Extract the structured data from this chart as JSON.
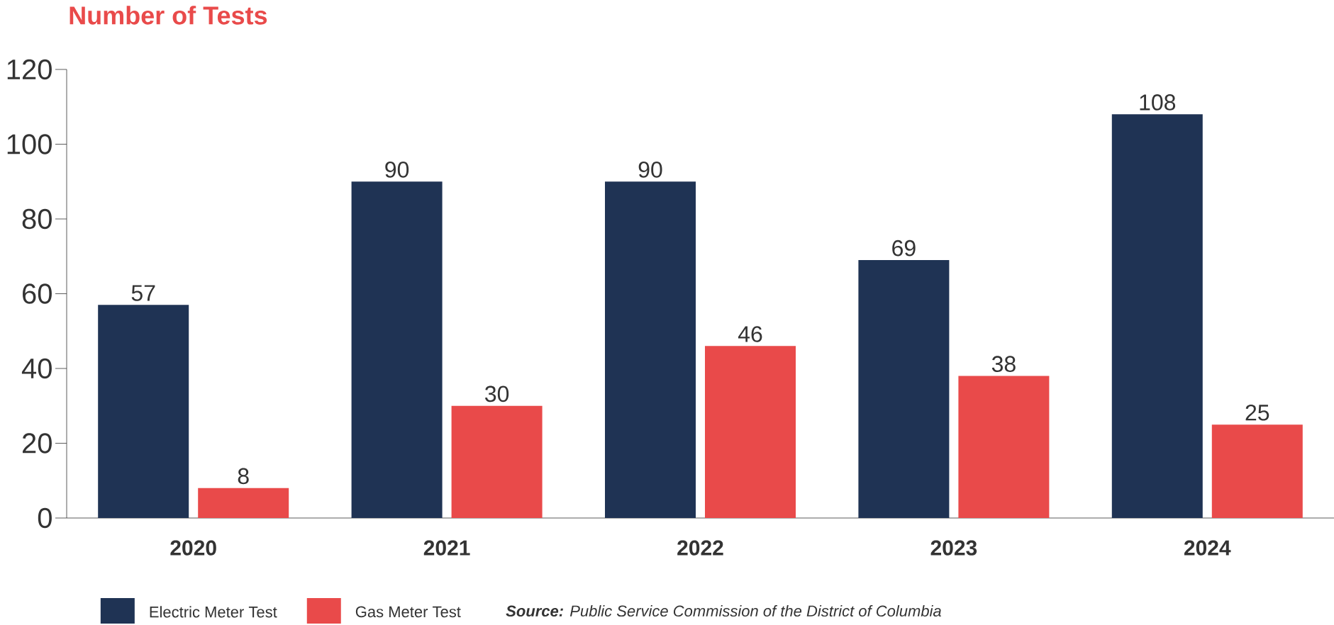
{
  "chart_data": {
    "type": "bar",
    "title": "Number of Tests",
    "categories": [
      "2020",
      "2021",
      "2022",
      "2023",
      "2024"
    ],
    "series": [
      {
        "name": "Electric Meter Test",
        "color": "#1f3354",
        "values": [
          57,
          90,
          90,
          69,
          108
        ]
      },
      {
        "name": "Gas Meter Test",
        "color": "#e94a4a",
        "values": [
          8,
          30,
          46,
          38,
          25
        ]
      }
    ],
    "ylim": [
      0,
      120
    ],
    "yticks": [
      0,
      20,
      40,
      60,
      80,
      100,
      120
    ],
    "data_labels": true,
    "legend": "bottom left",
    "annotations": [
      "**Source:** Public Service Commission of the District of Columbia"
    ]
  }
}
